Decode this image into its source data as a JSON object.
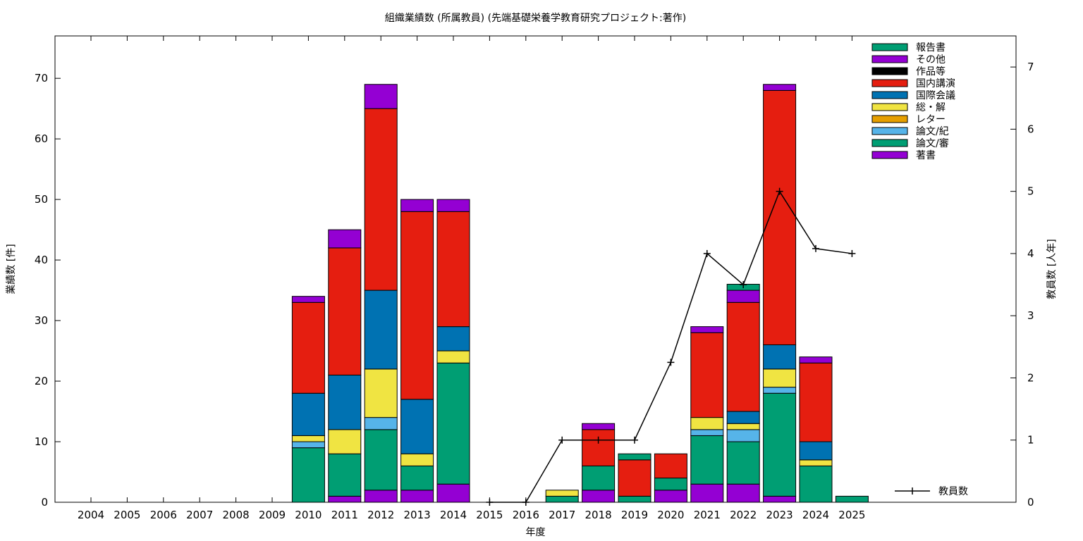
{
  "chart_data": {
    "type": "bar",
    "title": "組織業績数 (所属教員) (先端基礎栄養学教育研究プロジェクト:著作)",
    "xlabel": "年度",
    "ylabel": "業績数 [件]",
    "y2label": "教員数 [人年]",
    "ylim": [
      0,
      77
    ],
    "y2lim": [
      0,
      7.5
    ],
    "yticks": [
      0,
      10,
      20,
      30,
      40,
      50,
      60,
      70
    ],
    "y2ticks": [
      0,
      1,
      2,
      3,
      4,
      5,
      6,
      7
    ],
    "categories": [
      "2004",
      "2005",
      "2006",
      "2007",
      "2008",
      "2009",
      "2010",
      "2011",
      "2012",
      "2013",
      "2014",
      "2015",
      "2016",
      "2017",
      "2018",
      "2019",
      "2020",
      "2021",
      "2022",
      "2023",
      "2024",
      "2025"
    ],
    "stack_order": [
      "著書",
      "論文/審",
      "論文/紀",
      "レター",
      "総・解",
      "国際会議",
      "国内講演",
      "作品等",
      "その他",
      "報告書"
    ],
    "legend_order": [
      "報告書",
      "その他",
      "作品等",
      "国内講演",
      "国際会議",
      "総・解",
      "レター",
      "論文/紀",
      "論文/審",
      "著書"
    ],
    "legend_position": "top-right",
    "series": [
      {
        "name": "著書",
        "color": "#9400d3",
        "values": [
          0,
          0,
          0,
          0,
          0,
          0,
          0,
          1,
          2,
          2,
          3,
          0,
          0,
          0,
          2,
          0,
          2,
          3,
          3,
          1,
          0,
          0
        ]
      },
      {
        "name": "論文/審",
        "color": "#009e73",
        "values": [
          0,
          0,
          0,
          0,
          0,
          0,
          9,
          7,
          10,
          4,
          20,
          0,
          0,
          1,
          4,
          1,
          2,
          8,
          7,
          17,
          6,
          1
        ]
      },
      {
        "name": "論文/紀",
        "color": "#56b4e9",
        "values": [
          0,
          0,
          0,
          0,
          0,
          0,
          1,
          0,
          2,
          0,
          0,
          0,
          0,
          0,
          0,
          0,
          0,
          1,
          2,
          1,
          0,
          0
        ]
      },
      {
        "name": "レター",
        "color": "#e69f00",
        "values": [
          0,
          0,
          0,
          0,
          0,
          0,
          0,
          0,
          0,
          0,
          0,
          0,
          0,
          0,
          0,
          0,
          0,
          0,
          0,
          0,
          0,
          0
        ]
      },
      {
        "name": "総・解",
        "color": "#f0e442",
        "values": [
          0,
          0,
          0,
          0,
          0,
          0,
          1,
          4,
          8,
          2,
          2,
          0,
          0,
          1,
          0,
          0,
          0,
          2,
          1,
          3,
          1,
          0
        ]
      },
      {
        "name": "国際会議",
        "color": "#0072b2",
        "values": [
          0,
          0,
          0,
          0,
          0,
          0,
          7,
          9,
          13,
          9,
          4,
          0,
          0,
          0,
          0,
          0,
          0,
          0,
          2,
          4,
          3,
          0
        ]
      },
      {
        "name": "国内講演",
        "color": "#e51e10",
        "values": [
          0,
          0,
          0,
          0,
          0,
          0,
          15,
          21,
          30,
          31,
          19,
          0,
          0,
          0,
          6,
          6,
          4,
          14,
          18,
          42,
          13,
          0
        ]
      },
      {
        "name": "作品等",
        "color": "#000000",
        "values": [
          0,
          0,
          0,
          0,
          0,
          0,
          0,
          0,
          0,
          0,
          0,
          0,
          0,
          0,
          0,
          0,
          0,
          0,
          0,
          0,
          0,
          0
        ]
      },
      {
        "name": "その他",
        "color": "#9400d3",
        "values": [
          0,
          0,
          0,
          0,
          0,
          0,
          1,
          3,
          4,
          2,
          2,
          0,
          0,
          0,
          1,
          0,
          0,
          1,
          2,
          1,
          1,
          0
        ]
      },
      {
        "name": "報告書",
        "color": "#009e73",
        "values": [
          0,
          0,
          0,
          0,
          0,
          0,
          0,
          0,
          0,
          0,
          0,
          0,
          0,
          0,
          0,
          1,
          0,
          0,
          1,
          0,
          0,
          0
        ]
      }
    ],
    "line_series": {
      "name": "教員数",
      "color": "#000000",
      "axis": "right",
      "x": [
        "2015",
        "2016",
        "2017",
        "2018",
        "2019",
        "2020",
        "2021",
        "2022",
        "2023",
        "2024",
        "2025"
      ],
      "values": [
        0,
        0,
        1,
        1,
        1,
        2.25,
        4,
        3.5,
        5,
        4.08,
        4
      ]
    }
  }
}
